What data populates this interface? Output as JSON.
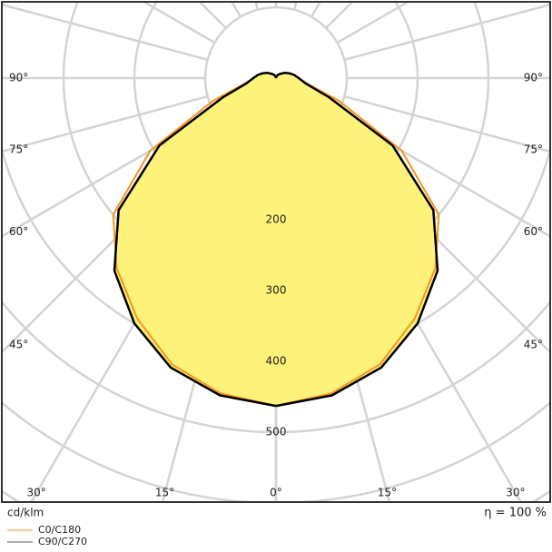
{
  "chart_data": {
    "type": "polar",
    "unit_label": "cd/klm",
    "efficiency_label": "η = 100 %",
    "angles": [
      0,
      10,
      20,
      30,
      40,
      50,
      60,
      70,
      80,
      90,
      100,
      110,
      120,
      130,
      140,
      150,
      160,
      170,
      180
    ],
    "series": [
      {
        "name": "C0/C180",
        "color": "#f7941d",
        "values": [
          463,
          452,
          430,
          392,
          350,
          300,
          205,
          95,
          45,
          32,
          26,
          20,
          15,
          10,
          7,
          5,
          3,
          2,
          0
        ]
      },
      {
        "name": "C90/C270",
        "color": "#000000",
        "fill": "#fdf27a",
        "values": [
          463,
          455,
          435,
          400,
          355,
          290,
          190,
          80,
          42,
          32,
          26,
          20,
          15,
          10,
          7,
          5,
          3,
          2,
          0
        ]
      }
    ],
    "rlim": [
      0,
      700
    ],
    "rticks": [
      200,
      300,
      400,
      500
    ],
    "rminor": [
      100,
      600,
      700
    ],
    "spokes": [
      0,
      15,
      30,
      45,
      60,
      75,
      90,
      105,
      120,
      135,
      150,
      165,
      180
    ],
    "angle_ticks": [
      {
        "value": 0,
        "label": "0°"
      },
      {
        "value": 15,
        "label": "15°"
      },
      {
        "value": 30,
        "label": "30°"
      },
      {
        "value": 45,
        "label": "45°"
      },
      {
        "value": 60,
        "label": "60°"
      },
      {
        "value": 75,
        "label": "75°"
      },
      {
        "value": 90,
        "label": "90°"
      }
    ]
  }
}
